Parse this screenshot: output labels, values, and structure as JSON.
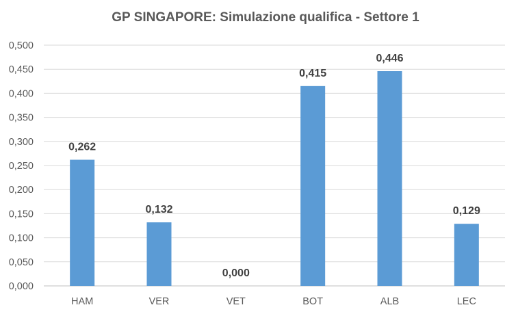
{
  "chart_data": {
    "type": "bar",
    "title": "GP SINGAPORE: Simulazione qualifica  - Settore 1",
    "xlabel": "",
    "ylabel": "",
    "categories": [
      "HAM",
      "VER",
      "VET",
      "BOT",
      "ALB",
      "LEC"
    ],
    "values": [
      0.262,
      0.132,
      0.0,
      0.415,
      0.446,
      0.129
    ],
    "data_labels": [
      "0,262",
      "0,132",
      "0,000",
      "0,415",
      "0,446",
      "0,129"
    ],
    "ylim": [
      0,
      0.5
    ],
    "yticks": [
      0,
      0.05,
      0.1,
      0.15,
      0.2,
      0.25,
      0.3,
      0.35,
      0.4,
      0.45,
      0.5
    ],
    "ytick_labels": [
      "0,000",
      "0,050",
      "0,100",
      "0,150",
      "0,200",
      "0,250",
      "0,300",
      "0,350",
      "0,400",
      "0,450",
      "0,500"
    ],
    "grid": true,
    "legend": "none",
    "bar_color": "#5b9bd5"
  }
}
